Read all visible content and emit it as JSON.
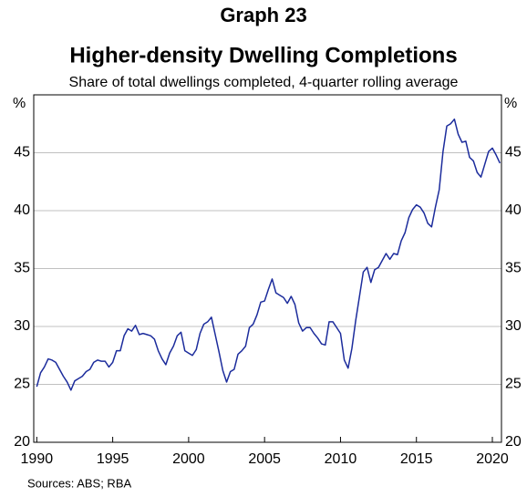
{
  "chart_data": {
    "type": "line",
    "title": "Graph 23",
    "heading": "Higher-density Dwelling Completions",
    "subtitle": "Share of total dwellings completed, 4-quarter rolling average",
    "y_unit": "%",
    "source": "Sources: ABS; RBA",
    "x": [
      1990,
      1990.25,
      1990.5,
      1990.75,
      1991,
      1991.25,
      1991.5,
      1991.75,
      1992,
      1992.25,
      1992.5,
      1992.75,
      1993,
      1993.25,
      1993.5,
      1993.75,
      1994,
      1994.25,
      1994.5,
      1994.75,
      1995,
      1995.25,
      1995.5,
      1995.75,
      1996,
      1996.25,
      1996.5,
      1996.75,
      1997,
      1997.25,
      1997.5,
      1997.75,
      1998,
      1998.25,
      1998.5,
      1998.75,
      1999,
      1999.25,
      1999.5,
      1999.75,
      2000,
      2000.25,
      2000.5,
      2000.75,
      2001,
      2001.25,
      2001.5,
      2001.75,
      2002,
      2002.25,
      2002.5,
      2002.75,
      2003,
      2003.25,
      2003.5,
      2003.75,
      2004,
      2004.25,
      2004.5,
      2004.75,
      2005,
      2005.25,
      2005.5,
      2005.75,
      2006,
      2006.25,
      2006.5,
      2006.75,
      2007,
      2007.25,
      2007.5,
      2007.75,
      2008,
      2008.25,
      2008.5,
      2008.75,
      2009,
      2009.25,
      2009.5,
      2009.75,
      2010,
      2010.25,
      2010.5,
      2010.75,
      2011,
      2011.25,
      2011.5,
      2011.75,
      2012,
      2012.25,
      2012.5,
      2012.75,
      2013,
      2013.25,
      2013.5,
      2013.75,
      2014,
      2014.25,
      2014.5,
      2014.75,
      2015,
      2015.25,
      2015.5,
      2015.75,
      2016,
      2016.25,
      2016.5,
      2016.75,
      2017,
      2017.25,
      2017.5,
      2017.75,
      2018,
      2018.25,
      2018.5,
      2018.75,
      2019,
      2019.25,
      2019.5,
      2019.75,
      2020,
      2020.25,
      2020.5
    ],
    "series": [
      {
        "color": "#1c2c9c",
        "values": [
          24.8,
          26.0,
          26.5,
          27.2,
          27.1,
          26.9,
          26.3,
          25.7,
          25.2,
          24.5,
          25.3,
          25.5,
          25.7,
          26.1,
          26.3,
          26.9,
          27.1,
          27.0,
          27.0,
          26.5,
          26.9,
          27.9,
          27.9,
          29.2,
          29.8,
          29.6,
          30.1,
          29.3,
          29.4,
          29.3,
          29.2,
          28.9,
          27.9,
          27.2,
          26.7,
          27.7,
          28.3,
          29.2,
          29.5,
          27.9,
          27.7,
          27.5,
          28.0,
          29.4,
          30.2,
          30.4,
          30.8,
          29.3,
          27.8,
          26.2,
          25.2,
          26.1,
          26.3,
          27.6,
          27.9,
          28.3,
          29.9,
          30.2,
          31.0,
          32.1,
          32.2,
          33.2,
          34.1,
          32.9,
          32.7,
          32.5,
          32.0,
          32.6,
          31.9,
          30.3,
          29.6,
          29.9,
          29.9,
          29.4,
          29.0,
          28.5,
          28.4,
          30.4,
          30.4,
          29.9,
          29.4,
          27.1,
          26.4,
          28.1,
          30.5,
          32.6,
          34.7,
          35.1,
          33.8,
          34.9,
          35.1,
          35.7,
          36.3,
          35.8,
          36.3,
          36.2,
          37.4,
          38.1,
          39.4,
          40.1,
          40.5,
          40.3,
          39.8,
          38.9,
          38.6,
          40.3,
          41.8,
          45.1,
          47.3,
          47.5,
          47.9,
          46.6,
          45.9,
          46.0,
          44.6,
          44.3,
          43.3,
          42.9,
          44.0,
          45.1,
          45.4,
          44.8,
          44.1
        ]
      }
    ],
    "xlim": [
      1989.8,
      2020.6
    ],
    "xticks": [
      1990,
      1995,
      2000,
      2005,
      2010,
      2015,
      2020
    ],
    "ylim": [
      20,
      50
    ],
    "yticks": [
      20,
      25,
      30,
      35,
      40,
      45
    ],
    "grid": true
  }
}
